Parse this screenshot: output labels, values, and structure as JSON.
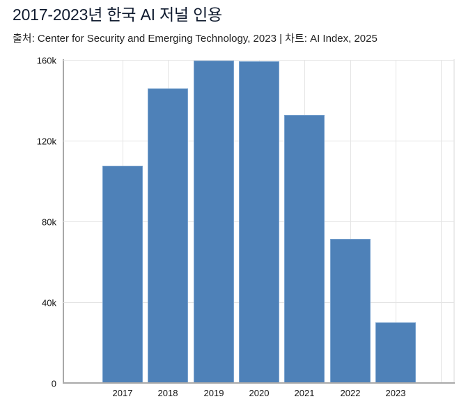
{
  "header": {
    "title": "2017-2023년 한국 AI 저널 인용",
    "subtitle": "출처: Center for Security and Emerging Technology, 2023 | 차트: AI Index, 2025"
  },
  "colors": {
    "bar": "#4e81b8",
    "grid": "#e4e4e4",
    "axis": "#a9a9a9"
  },
  "chart_data": {
    "type": "bar",
    "title": "2017-2023년 한국 AI 저널 인용",
    "subtitle": "출처: Center for Security and Emerging Technology, 2023 | 차트: AI Index, 2025",
    "xlabel": "",
    "ylabel": "",
    "categories": [
      "2017",
      "2018",
      "2019",
      "2020",
      "2021",
      "2022",
      "2023"
    ],
    "values": [
      107700,
      146000,
      159700,
      159300,
      132800,
      71500,
      30100
    ],
    "ylim": [
      0,
      160000
    ],
    "yticks": [
      0,
      40000,
      80000,
      120000,
      160000
    ],
    "ytick_labels": [
      "0",
      "40k",
      "80k",
      "120k",
      "160k"
    ],
    "grid": true,
    "legend": null
  }
}
